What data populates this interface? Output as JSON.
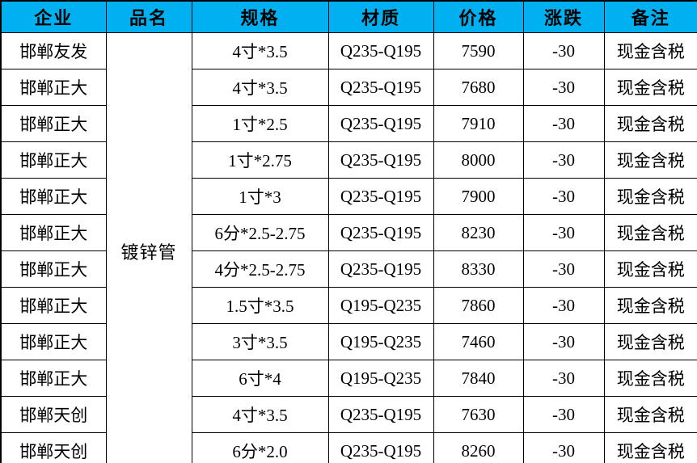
{
  "table": {
    "headers": [
      "企业",
      "品名",
      "规格",
      "材质",
      "价格",
      "涨跌",
      "备注"
    ],
    "product_name": "镀锌管",
    "rows": [
      {
        "company": "邯郸友发",
        "spec": "4寸*3.5",
        "material": "Q235-Q195",
        "price": "7590",
        "change": "-30",
        "note": "现金含税"
      },
      {
        "company": "邯郸正大",
        "spec": "4寸*3.5",
        "material": "Q235-Q195",
        "price": "7680",
        "change": "-30",
        "note": "现金含税"
      },
      {
        "company": "邯郸正大",
        "spec": "1寸*2.5",
        "material": "Q235-Q195",
        "price": "7910",
        "change": "-30",
        "note": "现金含税"
      },
      {
        "company": "邯郸正大",
        "spec": "1寸*2.75",
        "material": "Q235-Q195",
        "price": "8000",
        "change": "-30",
        "note": "现金含税"
      },
      {
        "company": "邯郸正大",
        "spec": "1寸*3",
        "material": "Q235-Q195",
        "price": "7900",
        "change": "-30",
        "note": "现金含税"
      },
      {
        "company": "邯郸正大",
        "spec": "6分*2.5-2.75",
        "material": "Q235-Q195",
        "price": "8230",
        "change": "-30",
        "note": "现金含税"
      },
      {
        "company": "邯郸正大",
        "spec": "4分*2.5-2.75",
        "material": "Q235-Q195",
        "price": "8330",
        "change": "-30",
        "note": "现金含税"
      },
      {
        "company": "邯郸正大",
        "spec": "1.5寸*3.5",
        "material": "Q195-Q235",
        "price": "7860",
        "change": "-30",
        "note": "现金含税"
      },
      {
        "company": "邯郸正大",
        "spec": "3寸*3.5",
        "material": "Q195-Q235",
        "price": "7460",
        "change": "-30",
        "note": "现金含税"
      },
      {
        "company": "邯郸正大",
        "spec": "6寸*4",
        "material": "Q195-Q235",
        "price": "7840",
        "change": "-30",
        "note": "现金含税"
      },
      {
        "company": "邯郸天创",
        "spec": "4寸*3.5",
        "material": "Q235-Q195",
        "price": "7630",
        "change": "-30",
        "note": "现金含税"
      },
      {
        "company": "邯郸天创",
        "spec": "6分*2.0",
        "material": "Q235-Q195",
        "price": "8260",
        "change": "-30",
        "note": "现金含税"
      }
    ],
    "colors": {
      "header_bg": "#00B0F0",
      "border": "#000000",
      "text": "#000000",
      "row_bg": "#FFFFFF"
    }
  },
  "chart_data": {
    "type": "table",
    "title": "",
    "columns": [
      "企业",
      "品名",
      "规格",
      "材质",
      "价格",
      "涨跌",
      "备注"
    ],
    "merged_cells": [
      {
        "column": "品名",
        "value": "镀锌管",
        "rows": "1-12"
      }
    ],
    "rows": [
      [
        "邯郸友发",
        "镀锌管",
        "4寸*3.5",
        "Q235-Q195",
        7590,
        -30,
        "现金含税"
      ],
      [
        "邯郸正大",
        "镀锌管",
        "4寸*3.5",
        "Q235-Q195",
        7680,
        -30,
        "现金含税"
      ],
      [
        "邯郸正大",
        "镀锌管",
        "1寸*2.5",
        "Q235-Q195",
        7910,
        -30,
        "现金含税"
      ],
      [
        "邯郸正大",
        "镀锌管",
        "1寸*2.75",
        "Q235-Q195",
        8000,
        -30,
        "现金含税"
      ],
      [
        "邯郸正大",
        "镀锌管",
        "1寸*3",
        "Q235-Q195",
        7900,
        -30,
        "现金含税"
      ],
      [
        "邯郸正大",
        "镀锌管",
        "6分*2.5-2.75",
        "Q235-Q195",
        8230,
        -30,
        "现金含税"
      ],
      [
        "邯郸正大",
        "镀锌管",
        "4分*2.5-2.75",
        "Q235-Q195",
        8330,
        -30,
        "现金含税"
      ],
      [
        "邯郸正大",
        "镀锌管",
        "1.5寸*3.5",
        "Q195-Q235",
        7860,
        -30,
        "现金含税"
      ],
      [
        "邯郸正大",
        "镀锌管",
        "3寸*3.5",
        "Q195-Q235",
        7460,
        -30,
        "现金含税"
      ],
      [
        "邯郸正大",
        "镀锌管",
        "6寸*4",
        "Q195-Q235",
        7840,
        -30,
        "现金含税"
      ],
      [
        "邯郸天创",
        "镀锌管",
        "4寸*3.5",
        "Q235-Q195",
        7630,
        -30,
        "现金含税"
      ],
      [
        "邯郸天创",
        "镀锌管",
        "6分*2.0",
        "Q235-Q195",
        8260,
        -30,
        "现金含税"
      ]
    ]
  }
}
